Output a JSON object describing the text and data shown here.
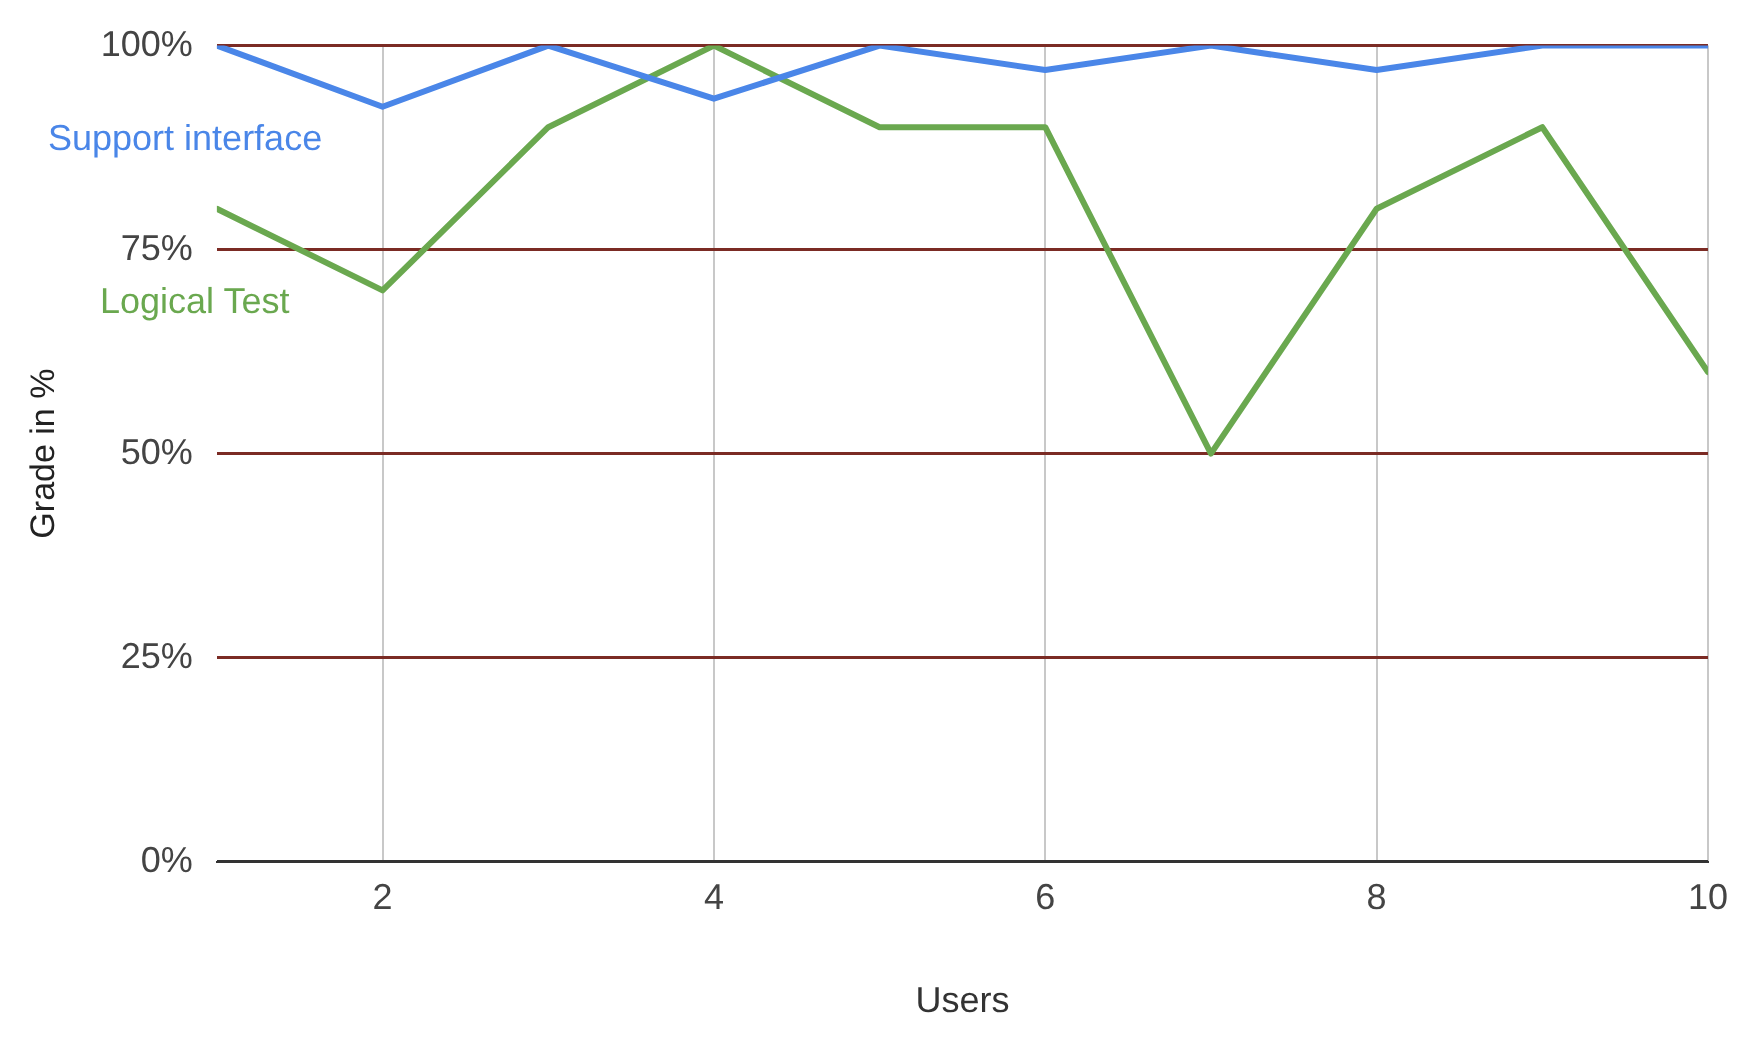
{
  "chart_data": {
    "type": "line",
    "xlabel": "Users",
    "ylabel": "Grade in %",
    "x": [
      1,
      2,
      3,
      4,
      5,
      6,
      7,
      8,
      9,
      10
    ],
    "series": [
      {
        "name": "Support interface",
        "color": "#4a86e8",
        "values": [
          100,
          92.5,
          100,
          93.5,
          100,
          97,
          100,
          97,
          100,
          100
        ]
      },
      {
        "name": "Logical Test",
        "color": "#6aa84f",
        "values": [
          80,
          70,
          90,
          100,
          90,
          90,
          50,
          80,
          90,
          60
        ]
      }
    ],
    "xlim": [
      1,
      10
    ],
    "xticks": [
      2,
      4,
      6,
      8,
      10
    ],
    "ylim": [
      0,
      100
    ],
    "yticks": [
      {
        "value": 0,
        "label": "0%"
      },
      {
        "value": 25,
        "label": "25%"
      },
      {
        "value": 50,
        "label": "50%"
      },
      {
        "value": 75,
        "label": "75%"
      },
      {
        "value": 100,
        "label": "100%"
      }
    ],
    "grid": true,
    "marker": "none",
    "line_style": "solid"
  }
}
